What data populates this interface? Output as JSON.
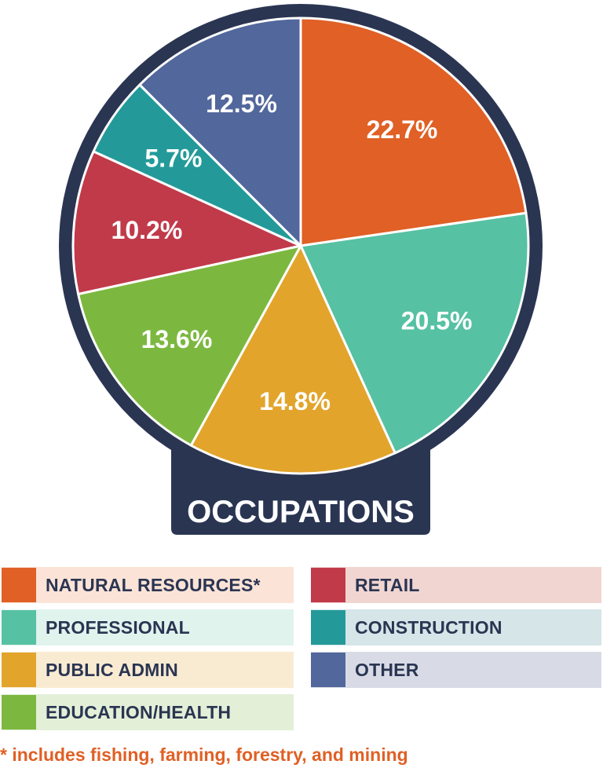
{
  "chart_data": {
    "type": "pie",
    "title": "OCCUPATIONS",
    "slices": [
      {
        "label": "NATURAL RESOURCES*",
        "value": 22.7,
        "display": "22.7%",
        "color": "#e06025",
        "legend_bg": "#fbe3d7"
      },
      {
        "label": "PROFESSIONAL",
        "value": 20.5,
        "display": "20.5%",
        "color": "#56c1a3",
        "legend_bg": "#e0f3ed"
      },
      {
        "label": "PUBLIC ADMIN",
        "value": 14.8,
        "display": "14.8%",
        "color": "#e2a42b",
        "legend_bg": "#f9ebd2"
      },
      {
        "label": "EDUCATION/HEALTH",
        "value": 13.6,
        "display": "13.6%",
        "color": "#7cb83f",
        "legend_bg": "#e3efd7"
      },
      {
        "label": "RETAIL",
        "value": 10.2,
        "display": "10.2%",
        "color": "#c13a4a",
        "legend_bg": "#f1d5d1"
      },
      {
        "label": "CONSTRUCTION",
        "value": 5.7,
        "display": "5.7%",
        "color": "#239a99",
        "legend_bg": "#d5e5e8"
      },
      {
        "label": "OTHER",
        "value": 12.5,
        "display": "12.5%",
        "color": "#52679b",
        "legend_bg": "#d8dbe6"
      }
    ],
    "frame_color": "#2a3552",
    "footnote": "* includes fishing, farming, forestry, and mining"
  }
}
